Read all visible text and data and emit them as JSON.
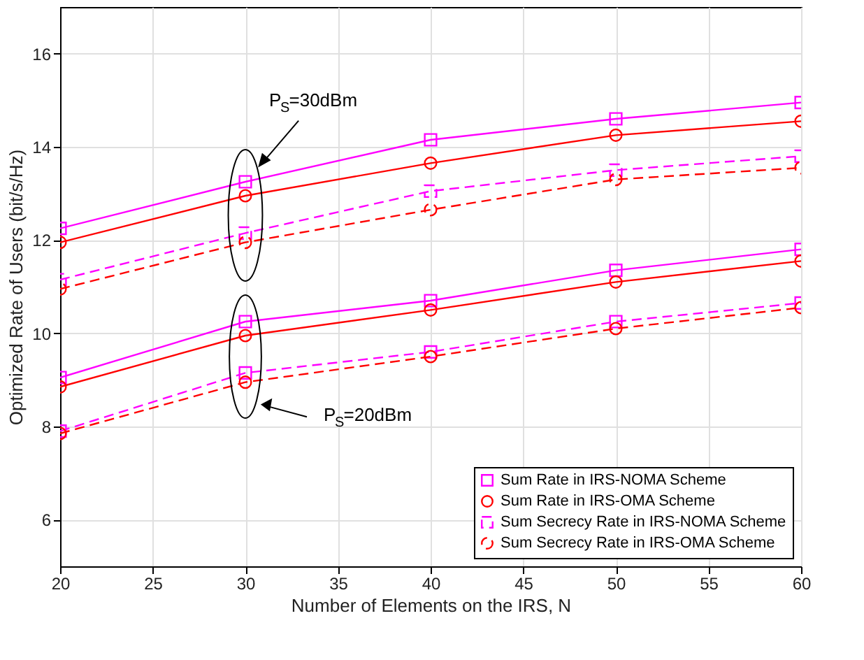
{
  "chart_data": {
    "type": "line",
    "xlabel": "Number of Elements on the IRS, N",
    "ylabel": "Optimized Rate of Users (bit/s/Hz)",
    "x": [
      20,
      30,
      40,
      50,
      60
    ],
    "xlim": [
      20,
      60
    ],
    "xticks": [
      20,
      25,
      30,
      35,
      40,
      45,
      50,
      55,
      60
    ],
    "ylim": [
      5,
      17
    ],
    "yticks": [
      6,
      8,
      10,
      12,
      14,
      16
    ],
    "grid": true,
    "legend": "bottom right",
    "series": [
      {
        "name": "Sum Rate in IRS-NOMA Scheme",
        "color": "#ff00ff",
        "marker": "square",
        "line_style": "solid",
        "values": [
          12.25,
          13.25,
          14.15,
          14.6,
          14.95
        ]
      },
      {
        "name": "Sum Rate in IRS-OMA Scheme",
        "color": "#ff0000",
        "marker": "circle",
        "line_style": "solid",
        "values": [
          11.95,
          12.95,
          13.65,
          14.25,
          14.55
        ]
      },
      {
        "name": "Sum Secrecy Rate in IRS-NOMA Scheme",
        "color": "#ff00ff",
        "marker": "square",
        "line_style": "dashed",
        "values": [
          11.15,
          12.15,
          13.05,
          13.5,
          13.8
        ]
      },
      {
        "name": "Sum Secrecy Rate in IRS-OMA Scheme",
        "color": "#ff0000",
        "marker": "circle",
        "line_style": "dashed",
        "values": [
          10.95,
          11.95,
          12.65,
          13.3,
          13.55
        ]
      },
      {
        "color": "#ff00ff",
        "marker": "square",
        "line_style": "solid",
        "values": [
          9.05,
          10.25,
          10.7,
          11.35,
          11.8
        ]
      },
      {
        "color": "#ff0000",
        "marker": "circle",
        "line_style": "solid",
        "values": [
          8.85,
          9.95,
          10.5,
          11.1,
          11.55
        ]
      },
      {
        "color": "#ff00ff",
        "marker": "square",
        "line_style": "dashed",
        "values": [
          7.9,
          9.15,
          9.6,
          10.25,
          10.65
        ]
      },
      {
        "color": "#ff0000",
        "marker": "circle",
        "line_style": "dashed",
        "values": [
          7.85,
          8.95,
          9.5,
          10.1,
          10.55
        ]
      }
    ],
    "annotations": [
      "P$_{S}$=30dBm",
      "P$_{S}$=20dBm"
    ]
  }
}
